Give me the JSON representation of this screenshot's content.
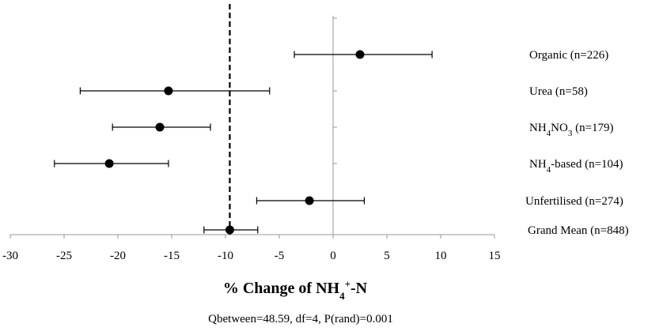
{
  "chart_data": {
    "type": "scatter",
    "subtype": "forest-plot",
    "xlabel": "% Change of NH4+-N",
    "xlabel_parts": {
      "prefix": "% Change of NH",
      "subscript": "4",
      "superscript": "+",
      "suffix": "-N"
    },
    "footnote": "Qbetween=48.59,  df=4, P(rand)=0.001",
    "xlim": [
      -30,
      15
    ],
    "xticks": [
      -30,
      -25,
      -20,
      -15,
      -10,
      -5,
      0,
      5,
      10,
      15
    ],
    "reference_line": {
      "x": -9.6,
      "style": "dashed"
    },
    "zero_line": {
      "x": 0
    },
    "categories": [
      {
        "label": "Organic (n=226)",
        "parts": [
          {
            "t": "Organic  (n=226)"
          }
        ],
        "mean": 2.5,
        "lower": -3.6,
        "upper": 9.2
      },
      {
        "label": "Urea (n=58)",
        "parts": [
          {
            "t": "Urea (n=58)"
          }
        ],
        "mean": -15.3,
        "lower": -23.5,
        "upper": -5.9
      },
      {
        "label": "NH4NO3 (n=179)",
        "parts": [
          {
            "t": "NH"
          },
          {
            "t": "4",
            "sub": true
          },
          {
            "t": "NO"
          },
          {
            "t": "3",
            "sub": true
          },
          {
            "t": " (n=179)"
          }
        ],
        "mean": -16.1,
        "lower": -20.5,
        "upper": -11.4
      },
      {
        "label": "NH4-based (n=104)",
        "parts": [
          {
            "t": "NH"
          },
          {
            "t": "4",
            "sub": true
          },
          {
            "t": "-based  (n=104)"
          }
        ],
        "mean": -20.8,
        "lower": -25.9,
        "upper": -15.3
      },
      {
        "label": "Unfertilised (n=274)",
        "parts": [
          {
            "t": "Unfertilised (n=274)"
          }
        ],
        "mean": -2.2,
        "lower": -7.1,
        "upper": 2.9
      },
      {
        "label": "Grand Mean (n=848)",
        "parts": [
          {
            "t": "Grand Mean (n=848)"
          }
        ],
        "mean": -9.6,
        "lower": -12.0,
        "upper": -7.0
      }
    ],
    "grid": false,
    "legend": "none"
  }
}
